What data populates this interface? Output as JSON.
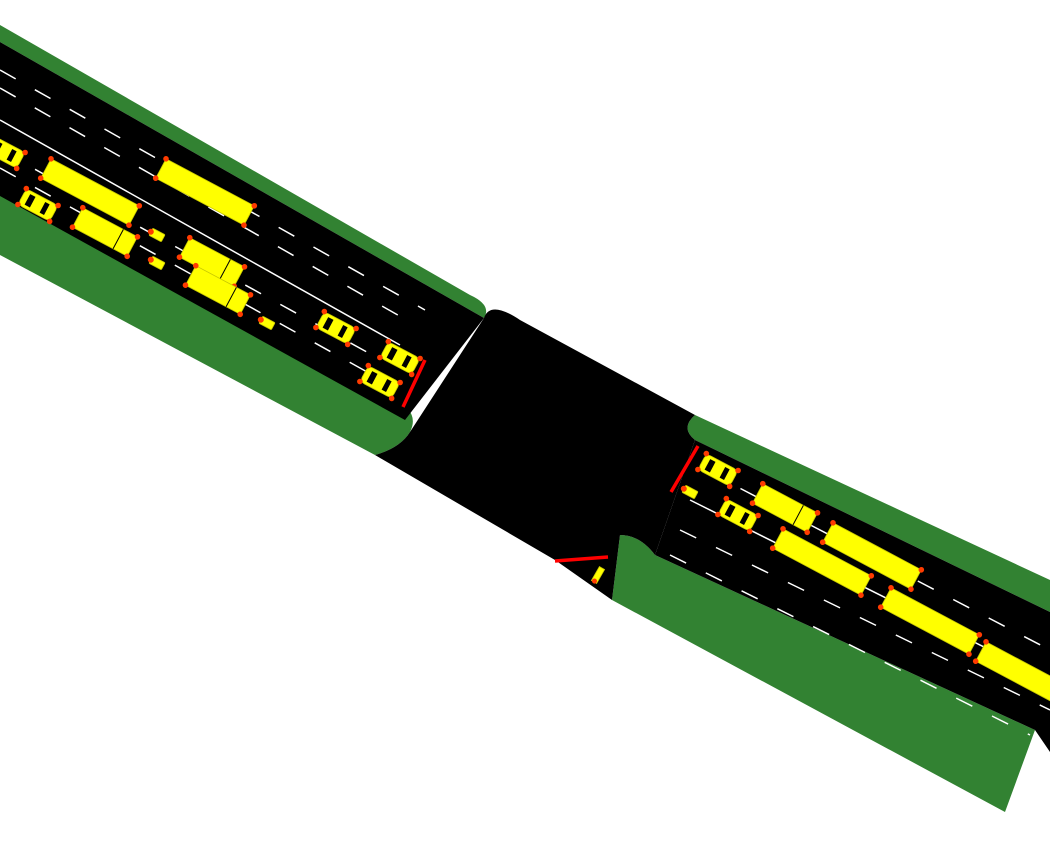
{
  "colors": {
    "background": "#ffffff",
    "grass": "#328232",
    "road": "#000000",
    "lane_marking": "#ffffff",
    "vehicle": "#ffff00",
    "vehicle_outline": "#c8c800",
    "light": "#ff3c00",
    "stop_line": "#ff0000",
    "window": "#000000"
  },
  "scene": {
    "type": "traffic-intersection-simulation",
    "road_lanes_each_side": 3
  },
  "vehicles_west": [
    {
      "kind": "car",
      "name": "car-w-1"
    },
    {
      "kind": "car",
      "name": "car-w-2"
    },
    {
      "kind": "bus",
      "name": "bus-w-1"
    },
    {
      "kind": "bus",
      "name": "bus-w-2"
    },
    {
      "kind": "truck",
      "name": "truck-w-1"
    },
    {
      "kind": "truck",
      "name": "truck-w-2"
    },
    {
      "kind": "truck",
      "name": "truck-w-3"
    },
    {
      "kind": "motorcycle",
      "name": "moto-w-1"
    },
    {
      "kind": "motorcycle",
      "name": "moto-w-2"
    },
    {
      "kind": "motorcycle",
      "name": "moto-w-3"
    },
    {
      "kind": "car",
      "name": "car-w-3"
    },
    {
      "kind": "car",
      "name": "car-w-4"
    },
    {
      "kind": "car",
      "name": "car-w-5"
    }
  ],
  "vehicles_east": [
    {
      "kind": "car",
      "name": "car-e-1"
    },
    {
      "kind": "motorcycle",
      "name": "moto-e-1"
    },
    {
      "kind": "car",
      "name": "car-e-2"
    },
    {
      "kind": "truck",
      "name": "truck-e-1"
    },
    {
      "kind": "bus",
      "name": "bus-e-1"
    },
    {
      "kind": "bus",
      "name": "bus-e-2"
    },
    {
      "kind": "bus",
      "name": "bus-e-3"
    },
    {
      "kind": "bus",
      "name": "bus-e-4"
    }
  ]
}
